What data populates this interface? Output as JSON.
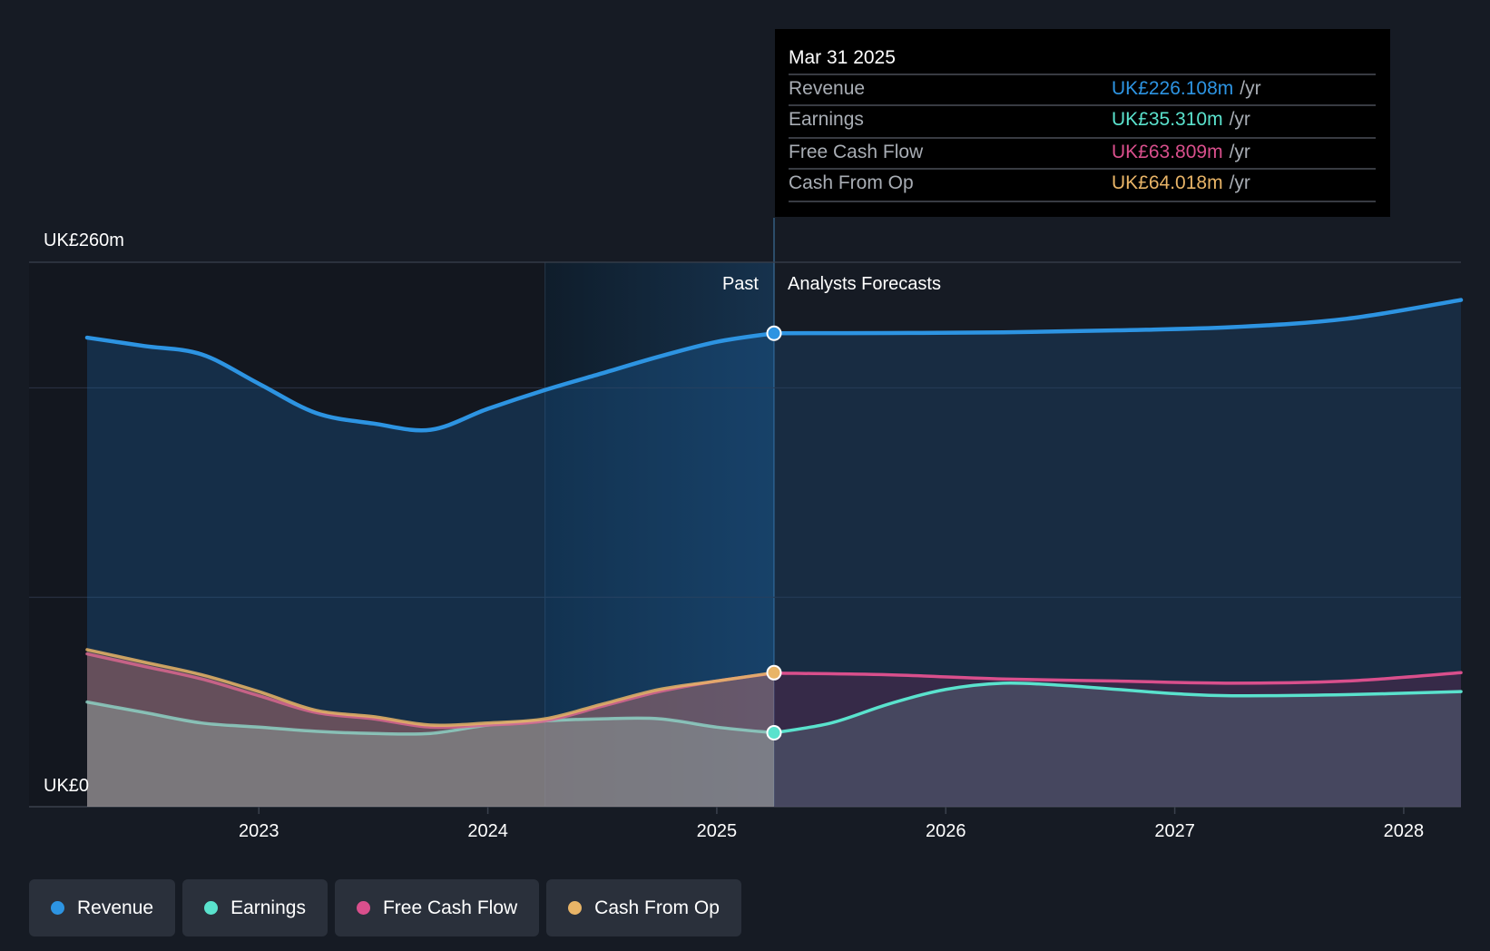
{
  "chart_data": {
    "type": "area",
    "currency": "UK£",
    "y_axis": {
      "min": 0,
      "max": 260,
      "top_label": "UK£260m",
      "bottom_label": "UK£0"
    },
    "x_ticks": [
      2023,
      2024,
      2025,
      2026,
      2027,
      2028
    ],
    "x_range": [
      2022.25,
      2028.25
    ],
    "divider_x": 2025.25,
    "past_label": "Past",
    "forecast_label": "Analysts Forecasts",
    "series": [
      {
        "name": "Revenue",
        "color": "#2d94e2",
        "past": [
          [
            2022.25,
            224
          ],
          [
            2022.5,
            220
          ],
          [
            2022.75,
            216
          ],
          [
            2023.0,
            202
          ],
          [
            2023.25,
            188
          ],
          [
            2023.5,
            183
          ],
          [
            2023.75,
            180
          ],
          [
            2024.0,
            190
          ],
          [
            2024.25,
            199
          ],
          [
            2024.5,
            207
          ],
          [
            2024.75,
            215
          ],
          [
            2025.0,
            222
          ],
          [
            2025.25,
            226.1
          ]
        ],
        "forecast": [
          [
            2025.25,
            226.1
          ],
          [
            2025.75,
            226.2
          ],
          [
            2026.25,
            226.5
          ],
          [
            2026.75,
            227.5
          ],
          [
            2027.25,
            229
          ],
          [
            2027.75,
            233
          ],
          [
            2028.25,
            242
          ]
        ]
      },
      {
        "name": "Earnings",
        "color": "#5ae2cd",
        "past": [
          [
            2022.25,
            50
          ],
          [
            2022.5,
            45
          ],
          [
            2022.75,
            40
          ],
          [
            2023.0,
            38
          ],
          [
            2023.25,
            36
          ],
          [
            2023.5,
            35
          ],
          [
            2023.75,
            35
          ],
          [
            2024.0,
            39
          ],
          [
            2024.25,
            41
          ],
          [
            2024.5,
            42
          ],
          [
            2024.75,
            42
          ],
          [
            2025.0,
            38
          ],
          [
            2025.25,
            35.3
          ]
        ],
        "forecast": [
          [
            2025.25,
            35.3
          ],
          [
            2025.5,
            40
          ],
          [
            2025.75,
            49
          ],
          [
            2026.0,
            56
          ],
          [
            2026.25,
            59
          ],
          [
            2026.5,
            58
          ],
          [
            2026.75,
            56
          ],
          [
            2027.0,
            54
          ],
          [
            2027.25,
            53
          ],
          [
            2027.75,
            53.5
          ],
          [
            2028.25,
            55
          ]
        ]
      },
      {
        "name": "Free Cash Flow",
        "color": "#d94f8c",
        "past": [
          [
            2022.25,
            73
          ],
          [
            2022.5,
            67
          ],
          [
            2022.75,
            61
          ],
          [
            2023.0,
            53
          ],
          [
            2023.25,
            45
          ],
          [
            2023.5,
            42
          ],
          [
            2023.75,
            38
          ],
          [
            2024.0,
            39
          ],
          [
            2024.25,
            41
          ],
          [
            2024.5,
            48
          ],
          [
            2024.75,
            55
          ],
          [
            2025.0,
            60
          ],
          [
            2025.25,
            63.8
          ]
        ],
        "forecast": [
          [
            2025.25,
            63.8
          ],
          [
            2025.75,
            63
          ],
          [
            2026.25,
            61
          ],
          [
            2026.75,
            60
          ],
          [
            2027.25,
            59
          ],
          [
            2027.75,
            60
          ],
          [
            2028.25,
            64
          ]
        ]
      },
      {
        "name": "Cash From Op",
        "color": "#e8b467",
        "past": [
          [
            2022.25,
            75
          ],
          [
            2022.5,
            69
          ],
          [
            2022.75,
            63
          ],
          [
            2023.0,
            55
          ],
          [
            2023.25,
            46
          ],
          [
            2023.5,
            43
          ],
          [
            2023.75,
            39
          ],
          [
            2024.0,
            40
          ],
          [
            2024.25,
            42
          ],
          [
            2024.5,
            49
          ],
          [
            2024.75,
            56
          ],
          [
            2025.0,
            60
          ],
          [
            2025.25,
            64.0
          ]
        ],
        "forecast": []
      }
    ],
    "tooltip": {
      "date": "Mar 31 2025",
      "unit": "/yr",
      "rows": [
        {
          "label": "Revenue",
          "value": "UK£226.108m",
          "color": "#2d94e2"
        },
        {
          "label": "Earnings",
          "value": "UK£35.310m",
          "color": "#5ae2cd"
        },
        {
          "label": "Free Cash Flow",
          "value": "UK£63.809m",
          "color": "#d94f8c"
        },
        {
          "label": "Cash From Op",
          "value": "UK£64.018m",
          "color": "#e8b467"
        }
      ]
    }
  },
  "legend": [
    {
      "label": "Revenue",
      "color": "#2d94e2"
    },
    {
      "label": "Earnings",
      "color": "#5ae2cd"
    },
    {
      "label": "Free Cash Flow",
      "color": "#d94f8c"
    },
    {
      "label": "Cash From Op",
      "color": "#e8b467"
    }
  ]
}
